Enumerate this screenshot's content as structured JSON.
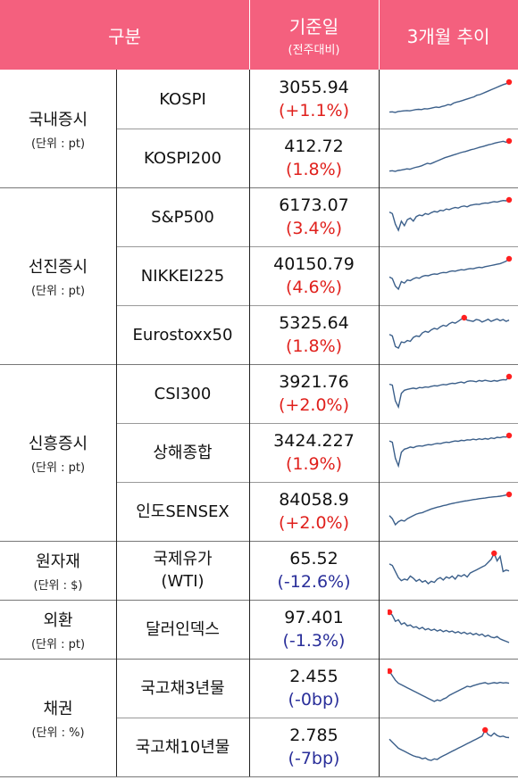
{
  "header": {
    "category": "구분",
    "base_date": "기준일",
    "base_date_sub": "(전주대비)",
    "trend": "3개월 추이"
  },
  "colors": {
    "header_bg": "#f4607e",
    "positive": "#e0201c",
    "negative": "#2a2f9a",
    "spark_line": "#3b5f8a",
    "spark_marker": "#ff2020"
  },
  "groups": [
    {
      "title": "국내증시",
      "unit": "(단위 : pt)",
      "rows": [
        {
          "name": "KOSPI",
          "value": "3055.94",
          "change": "(+1.1%)",
          "sign": "pos",
          "spark": [
            4,
            5,
            3,
            6,
            7,
            8,
            9,
            8,
            10,
            12,
            13,
            12,
            15,
            14,
            16,
            18,
            20,
            19,
            22,
            24,
            28,
            27,
            33,
            36,
            38,
            41,
            44,
            47,
            50,
            53,
            58,
            60,
            64,
            68,
            72,
            76,
            80,
            84,
            88,
            92,
            95,
            100
          ],
          "marker": "last"
        },
        {
          "name": "KOSPI200",
          "value": "412.72",
          "change": "(1.8%)",
          "sign": "pos",
          "spark": [
            3,
            4,
            2,
            5,
            6,
            8,
            10,
            9,
            12,
            15,
            17,
            20,
            24,
            28,
            26,
            30,
            34,
            38,
            42,
            46,
            49,
            52,
            55,
            58,
            61,
            64,
            66,
            69,
            72,
            74,
            77,
            80,
            82,
            85,
            88,
            90,
            93,
            95,
            97,
            99,
            96,
            100
          ],
          "marker": "last"
        }
      ]
    },
    {
      "title": "선진증시",
      "unit": "(단위 : pt)",
      "rows": [
        {
          "name": "S&P500",
          "value": "6173.07",
          "change": "(3.4%)",
          "sign": "pos",
          "spark": [
            60,
            55,
            20,
            0,
            30,
            15,
            35,
            40,
            30,
            45,
            50,
            48,
            55,
            52,
            58,
            62,
            60,
            66,
            64,
            70,
            68,
            72,
            75,
            73,
            78,
            80,
            77,
            82,
            84,
            86,
            85,
            88,
            90,
            89,
            92,
            94,
            93,
            96,
            98,
            97,
            100
          ],
          "marker": "last"
        },
        {
          "name": "NIKKEI225",
          "value": "40150.79",
          "change": "(4.6%)",
          "sign": "pos",
          "spark": [
            40,
            35,
            10,
            0,
            25,
            20,
            30,
            28,
            34,
            38,
            36,
            42,
            45,
            44,
            48,
            50,
            49,
            53,
            55,
            54,
            58,
            60,
            59,
            62,
            64,
            63,
            66,
            68,
            67,
            70,
            72,
            71,
            74,
            76,
            78,
            80,
            82,
            84,
            88,
            92,
            100
          ],
          "marker": "last"
        },
        {
          "name": "Eurostoxx50",
          "value": "5325.64",
          "change": "(1.8%)",
          "sign": "pos",
          "spark": [
            45,
            40,
            5,
            0,
            20,
            18,
            25,
            22,
            35,
            40,
            38,
            50,
            55,
            52,
            60,
            65,
            62,
            70,
            75,
            72,
            80,
            85,
            82,
            88,
            95,
            100,
            92,
            90,
            88,
            94,
            92,
            86,
            90,
            95,
            88,
            92,
            96,
            90,
            94,
            88,
            92
          ],
          "marker": "max"
        }
      ]
    },
    {
      "title": "신흥증시",
      "unit": "(단위 : pt)",
      "rows": [
        {
          "name": "CSI300",
          "value": "3921.76",
          "change": "(+2.0%)",
          "sign": "pos",
          "spark": [
            75,
            72,
            20,
            0,
            45,
            55,
            58,
            60,
            62,
            60,
            64,
            63,
            66,
            65,
            68,
            70,
            69,
            72,
            74,
            73,
            76,
            78,
            77,
            80,
            82,
            79,
            84,
            86,
            85,
            83,
            87,
            85,
            88,
            86,
            84,
            87,
            85,
            88,
            90,
            89,
            100
          ],
          "marker": "last"
        },
        {
          "name": "상해종합",
          "value": "3424.227",
          "change": "(1.9%)",
          "sign": "pos",
          "spark": [
            82,
            78,
            25,
            0,
            45,
            55,
            58,
            62,
            60,
            64,
            66,
            65,
            68,
            70,
            69,
            72,
            74,
            73,
            76,
            78,
            77,
            80,
            82,
            81,
            84,
            83,
            86,
            85,
            88,
            86,
            89,
            87,
            90,
            88,
            92,
            90,
            94,
            93,
            96,
            95,
            100
          ],
          "marker": "last"
        },
        {
          "name": "인도SENSEX",
          "value": "84058.9",
          "change": "(+2.0%)",
          "sign": "pos",
          "spark": [
            30,
            20,
            0,
            10,
            15,
            12,
            20,
            25,
            30,
            35,
            38,
            40,
            44,
            48,
            52,
            55,
            58,
            60,
            63,
            65,
            68,
            70,
            72,
            74,
            76,
            78,
            79,
            81,
            83,
            84,
            86,
            87,
            88,
            90,
            91,
            92,
            93,
            94,
            96,
            98,
            100
          ],
          "marker": "last"
        }
      ]
    },
    {
      "title": "원자재",
      "unit": "(단위 : $)",
      "rows": [
        {
          "name": "국제유가\n(WTI)",
          "value": "65.52",
          "change": "(-12.6%)",
          "sign": "neg",
          "spark": [
            65,
            60,
            40,
            20,
            10,
            15,
            12,
            25,
            18,
            8,
            14,
            5,
            10,
            0,
            8,
            4,
            15,
            20,
            12,
            22,
            18,
            25,
            15,
            28,
            24,
            30,
            22,
            35,
            40,
            45,
            50,
            55,
            60,
            70,
            80,
            100,
            75,
            90,
            40,
            45,
            42
          ],
          "marker": "max"
        }
      ]
    },
    {
      "title": "외환",
      "unit": "(단위 : pt)",
      "rows": [
        {
          "name": "달러인덱스",
          "value": "97.401",
          "change": "(-1.3%)",
          "sign": "neg",
          "spark": [
            100,
            90,
            70,
            75,
            60,
            65,
            55,
            58,
            50,
            52,
            45,
            50,
            42,
            46,
            40,
            44,
            38,
            42,
            36,
            40,
            35,
            38,
            32,
            36,
            30,
            34,
            28,
            32,
            26,
            30,
            24,
            28,
            20,
            24,
            18,
            16,
            20,
            12,
            8,
            4,
            0
          ],
          "marker": "first"
        }
      ]
    },
    {
      "title": "채권",
      "unit": "(단위 : %)",
      "rows": [
        {
          "name": "국고채3년물",
          "value": "2.455",
          "change": "(-0bp)",
          "sign": "neg",
          "spark": [
            100,
            85,
            70,
            60,
            55,
            50,
            45,
            40,
            35,
            30,
            25,
            20,
            15,
            10,
            5,
            0,
            5,
            2,
            8,
            12,
            20,
            25,
            30,
            35,
            40,
            45,
            50,
            48,
            52,
            55,
            58,
            60,
            62,
            58,
            60,
            62,
            60,
            63,
            61,
            62,
            60
          ],
          "marker": "first"
        },
        {
          "name": "국고채10년물",
          "value": "2.785",
          "change": "(-7bp)",
          "sign": "neg",
          "spark": [
            70,
            60,
            50,
            40,
            35,
            30,
            25,
            20,
            15,
            12,
            10,
            5,
            8,
            2,
            0,
            5,
            3,
            10,
            15,
            20,
            25,
            30,
            35,
            40,
            45,
            50,
            55,
            60,
            65,
            70,
            75,
            80,
            100,
            85,
            80,
            90,
            82,
            78,
            80,
            76,
            75
          ],
          "marker": "max"
        }
      ]
    }
  ]
}
